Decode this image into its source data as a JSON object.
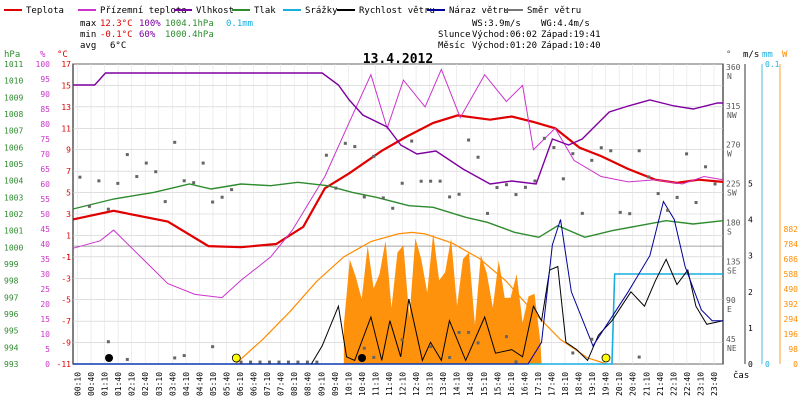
{
  "title": "13.4.2012",
  "legend": [
    {
      "label": "Teplota",
      "color": "#e00000"
    },
    {
      "label": "Přízemní teplota",
      "color": "#cc33cc"
    },
    {
      "label": "Vlhkost",
      "color": "#7f00a0"
    },
    {
      "label": "Tlak",
      "color": "#2e8b2e"
    },
    {
      "label": "Srážky",
      "color": "#19aee0"
    },
    {
      "label": "Rychlost větru",
      "color": "#000000"
    },
    {
      "label": "Náraz větru",
      "color": "#000099"
    },
    {
      "label": "Směr větru",
      "color": "#777777"
    }
  ],
  "stats": {
    "max_label": "max",
    "max_temp": "12.3°C",
    "max_hum": "100%",
    "max_press": "1004.1hPa",
    "max_rain": "0.1mm",
    "min_label": "min",
    "min_temp": "-0.1°C",
    "min_hum": "60%",
    "min_press": "1000.4hPa",
    "avg_label": "avg",
    "avg_temp": "6°C"
  },
  "info": {
    "ws": "WS:3.9m/s",
    "wg": "WG:4.4m/s",
    "sun_label": "Slunce",
    "sun_rise": "Východ:06:02",
    "sun_set": "Západ:19:41",
    "moon_label": "Měsíc",
    "moon_rise": "Východ:01:20",
    "moon_set": "Západ:10:40"
  },
  "axes": {
    "hpa_unit": "hPa",
    "pct_unit": "%",
    "temp_unit": "°C",
    "dir_unit": "°",
    "ms_unit": "m/s",
    "mm_unit": "mm",
    "w_unit": "W",
    "x_label": "čas"
  },
  "chart_data": {
    "type": "line",
    "title": "13.4.2012",
    "x_ticks": [
      "00:10",
      "00:40",
      "01:10",
      "01:40",
      "02:10",
      "02:40",
      "03:10",
      "03:40",
      "04:10",
      "04:40",
      "05:10",
      "05:40",
      "06:10",
      "06:40",
      "07:10",
      "07:40",
      "08:10",
      "08:40",
      "09:10",
      "09:40",
      "10:10",
      "10:40",
      "11:10",
      "11:40",
      "12:10",
      "12:40",
      "13:10",
      "13:40",
      "14:10",
      "14:40",
      "15:10",
      "15:40",
      "16:10",
      "16:40",
      "17:10",
      "17:40",
      "18:10",
      "18:40",
      "19:10",
      "19:40",
      "20:10",
      "20:40",
      "21:10",
      "21:40",
      "22:10",
      "22:40",
      "23:10",
      "23:40"
    ],
    "y_axes": {
      "pressure_hpa": {
        "min": 993,
        "max": 1011,
        "ticks": [
          993,
          994,
          995,
          996,
          997,
          998,
          999,
          1000,
          1001,
          1002,
          1003,
          1004,
          1005,
          1006,
          1007,
          1008,
          1009,
          1010,
          1011
        ]
      },
      "humidity_pct": {
        "min": 0,
        "max": 100,
        "ticks": [
          0,
          5,
          10,
          15,
          20,
          25,
          30,
          35,
          40,
          45,
          50,
          55,
          60,
          65,
          70,
          75,
          80,
          85,
          90,
          95,
          100
        ]
      },
      "temperature_c": {
        "min": -11,
        "max": 17,
        "ticks": [
          "-11",
          "-9",
          "-7",
          "-5",
          "-3",
          "-1",
          "1",
          "3",
          "5",
          "7",
          "9",
          "11",
          "13",
          "15",
          "17",
          "-1"
        ]
      },
      "direction_deg": {
        "ticks": [
          {
            "deg": "360",
            "dir": "N"
          },
          {
            "deg": "315",
            "dir": "NW"
          },
          {
            "deg": "270",
            "dir": "W"
          },
          {
            "deg": "225",
            "dir": "SW"
          },
          {
            "deg": "180",
            "dir": "S"
          },
          {
            "deg": "135",
            "dir": "SE"
          },
          {
            "deg": "90",
            "dir": "E"
          },
          {
            "deg": "45",
            "dir": "NE"
          }
        ]
      },
      "wind_ms": {
        "min": 0,
        "max": 5,
        "ticks": [
          0,
          1,
          2,
          3,
          4,
          5
        ]
      },
      "rain_mm": {
        "min": 0,
        "max": 0.1,
        "ticks": [
          "0",
          "0.1"
        ]
      },
      "solar_w": {
        "min": 0,
        "max": 882,
        "ticks": [
          0,
          98,
          196,
          294,
          392,
          490,
          588,
          686,
          784,
          882
        ]
      }
    },
    "series": [
      {
        "name": "Teplota",
        "unit": "°C",
        "x": [
          0,
          1.5,
          3.5,
          5,
          6.2,
          7.5,
          8.5,
          9.3,
          10.2,
          11.4,
          12.3,
          13.3,
          14.2,
          15.4,
          16.2,
          17,
          17.8,
          18.7,
          19.5,
          20.5,
          21.5,
          22.3,
          23.1,
          24
        ],
        "y": [
          2.5,
          3.3,
          2.3,
          0,
          -0.1,
          0.2,
          1.8,
          5.4,
          6.8,
          8.9,
          10.2,
          11.5,
          12.2,
          11.8,
          12.1,
          11.6,
          11.0,
          9.2,
          8.4,
          7.2,
          6.2,
          5.9,
          6.2,
          6.0
        ]
      },
      {
        "name": "Přízemní teplota",
        "unit": "°C",
        "x": [
          0,
          1,
          1.5,
          2.5,
          3.5,
          4.5,
          5.5,
          6.2,
          7.3,
          8.1,
          9.3,
          10.1,
          11,
          11.6,
          12.2,
          13,
          13.6,
          14.3,
          15.2,
          16,
          16.6,
          17,
          17.4,
          17.8,
          18.5,
          19.5,
          20.5,
          21.5,
          22.5,
          23.3,
          24
        ],
        "y": [
          -0.2,
          0.5,
          1.5,
          -1.0,
          -3.5,
          -4.5,
          -4.8,
          -3.2,
          -1.0,
          1.5,
          6.5,
          11.0,
          16.0,
          11.0,
          15.5,
          13.0,
          16.5,
          12.0,
          16.0,
          13.5,
          15.0,
          9.0,
          10.0,
          11.0,
          8.0,
          6.5,
          6.0,
          6.2,
          5.8,
          6.5,
          6.2
        ]
      },
      {
        "name": "Vlhkost",
        "unit": "%",
        "x": [
          0,
          0.8,
          1.2,
          6.2,
          9.2,
          9.8,
          10.2,
          10.7,
          11.6,
          12.1,
          12.7,
          13.4,
          14.4,
          15.4,
          16.2,
          17.1,
          17.7,
          18.3,
          18.8,
          19.8,
          20.5,
          21.3,
          22.2,
          22.9,
          23.8,
          24
        ],
        "y": [
          93,
          93,
          97,
          97,
          97,
          93,
          88,
          83,
          79,
          73,
          70,
          71,
          65,
          60,
          61,
          60,
          75,
          73,
          75,
          84,
          86,
          88,
          86,
          85,
          87,
          87
        ]
      },
      {
        "name": "Tlak",
        "unit": "hPa",
        "x": [
          0,
          1.5,
          3,
          4.3,
          5.1,
          6.2,
          7.3,
          8.3,
          9.4,
          10.3,
          11.2,
          12.4,
          13.3,
          14.5,
          15.3,
          16.3,
          17.2,
          17.9,
          18.9,
          19.9,
          20.9,
          21.9,
          22.9,
          24
        ],
        "y": [
          1002.3,
          1002.9,
          1003.3,
          1003.8,
          1003.5,
          1003.8,
          1003.7,
          1003.9,
          1003.7,
          1003.3,
          1003.0,
          1002.5,
          1002.4,
          1001.8,
          1001.5,
          1000.9,
          1000.6,
          1001.3,
          1000.6,
          1001.0,
          1001.3,
          1001.6,
          1001.4,
          1001.6
        ]
      },
      {
        "name": "Srážky",
        "unit": "mm",
        "x": [
          0,
          19.9,
          20.0,
          24
        ],
        "y": [
          0,
          0,
          0.03,
          0.03
        ]
      },
      {
        "name": "Rychlost větru",
        "unit": "m/s",
        "x": [
          0,
          8.8,
          9.2,
          9.8,
          10.1,
          10.4,
          11.0,
          11.4,
          11.7,
          12.1,
          12.4,
          12.9,
          13.2,
          13.6,
          13.9,
          14.5,
          15.2,
          15.6,
          16.2,
          16.6,
          17.0,
          17.3,
          17.6,
          17.9,
          18.2,
          18.6,
          19.0,
          19.4,
          19.9,
          20.6,
          21.1,
          21.5,
          21.9,
          22.3,
          22.7,
          23.0,
          23.4,
          24
        ],
        "y": [
          0,
          0,
          0.5,
          1.6,
          0.2,
          0.1,
          1.3,
          0.1,
          1.2,
          0.2,
          1.8,
          0.1,
          0.6,
          0.1,
          1.2,
          0.1,
          1.3,
          0.3,
          0.4,
          0.2,
          1.6,
          1.2,
          2.6,
          2.7,
          0.6,
          0.4,
          0.1,
          0.8,
          1.2,
          2.0,
          1.6,
          2.3,
          2.9,
          2.2,
          2.6,
          1.6,
          1.1,
          1.2
        ]
      },
      {
        "name": "Náraz větru",
        "unit": "m/s",
        "x": [
          0,
          16.8,
          17.3,
          17.7,
          18.0,
          18.4,
          19.2,
          20.5,
          21.3,
          21.8,
          22.2,
          22.6,
          23.2,
          23.6,
          24
        ],
        "y": [
          0,
          0,
          0.6,
          3.3,
          4.0,
          2.0,
          0.5,
          2.0,
          3.0,
          4.5,
          4.0,
          2.7,
          1.5,
          1.2,
          1.2
        ]
      },
      {
        "name": "Solární záření",
        "unit": "W",
        "x": [
          6.0,
          7.0,
          8.0,
          9.0,
          10.0,
          11.0,
          12.0,
          12.5,
          13.0,
          14.0,
          15.0,
          16.0,
          17.0,
          18.0,
          19.0,
          19.7
        ],
        "y": [
          0,
          160,
          340,
          540,
          700,
          800,
          850,
          860,
          850,
          790,
          690,
          540,
          340,
          160,
          40,
          0
        ]
      }
    ]
  }
}
